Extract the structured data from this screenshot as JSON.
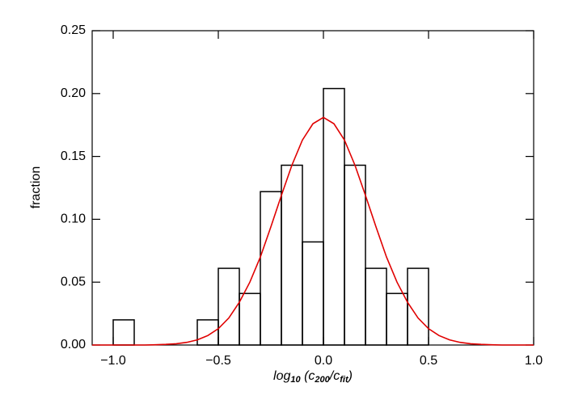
{
  "chart_data": {
    "type": "histogram",
    "ylabel": "fraction",
    "xlabel_parts": [
      "log",
      "10",
      " (c",
      "200",
      "/c",
      "fit",
      ")"
    ],
    "bins": [
      -1.0,
      -0.9,
      -0.8,
      -0.7,
      -0.6,
      -0.5,
      -0.4,
      -0.3,
      -0.2,
      -0.1,
      0.0,
      0.1,
      0.2,
      0.3,
      0.4,
      0.5
    ],
    "values": [
      0.02,
      0,
      0,
      0,
      0.02,
      0.061,
      0.041,
      0.122,
      0.143,
      0.082,
      0.204,
      0.143,
      0.061,
      0.041,
      0.061
    ],
    "color": "#000000",
    "fit": {
      "color": "#e00000",
      "x": [
        -1.1,
        -1.05,
        -1.0,
        -0.95,
        -0.9,
        -0.85,
        -0.8,
        -0.75,
        -0.7,
        -0.65,
        -0.6,
        -0.55,
        -0.5,
        -0.45,
        -0.4,
        -0.35,
        -0.3,
        -0.25,
        -0.2,
        -0.15,
        -0.1,
        -0.05,
        0.0,
        0.05,
        0.1,
        0.15,
        0.2,
        0.25,
        0.3,
        0.35,
        0.4,
        0.45,
        0.5,
        0.55,
        0.6,
        0.65,
        0.7,
        0.75,
        0.8,
        0.85,
        0.9,
        0.95,
        1.0
      ],
      "values": [
        0,
        0,
        0,
        0,
        0,
        0,
        0.0002,
        0.0005,
        0.001,
        0.0021,
        0.0041,
        0.0075,
        0.013,
        0.0215,
        0.034,
        0.05,
        0.07,
        0.094,
        0.119,
        0.143,
        0.163,
        0.176,
        0.181,
        0.176,
        0.163,
        0.143,
        0.119,
        0.094,
        0.07,
        0.05,
        0.034,
        0.0215,
        0.013,
        0.0075,
        0.0041,
        0.0021,
        0.001,
        0.0005,
        0.0002,
        0,
        0,
        0,
        0
      ]
    },
    "xlim": [
      -1.1,
      1.0
    ],
    "ylim": [
      0,
      0.25
    ],
    "xticks": [
      {
        "value": -1.0,
        "label": "−1.0"
      },
      {
        "value": -0.5,
        "label": "−0.5"
      },
      {
        "value": 0.0,
        "label": "0.0"
      },
      {
        "value": 0.5,
        "label": "0.5"
      },
      {
        "value": 1.0,
        "label": "1.0"
      }
    ],
    "yticks": [
      {
        "value": 0,
        "label": "0.00"
      },
      {
        "value": 0.05,
        "label": "0.05"
      },
      {
        "value": 0.1,
        "label": "0.10"
      },
      {
        "value": 0.15,
        "label": "0.15"
      },
      {
        "value": 0.2,
        "label": "0.20"
      },
      {
        "value": 0.25,
        "label": "0.25"
      }
    ]
  }
}
